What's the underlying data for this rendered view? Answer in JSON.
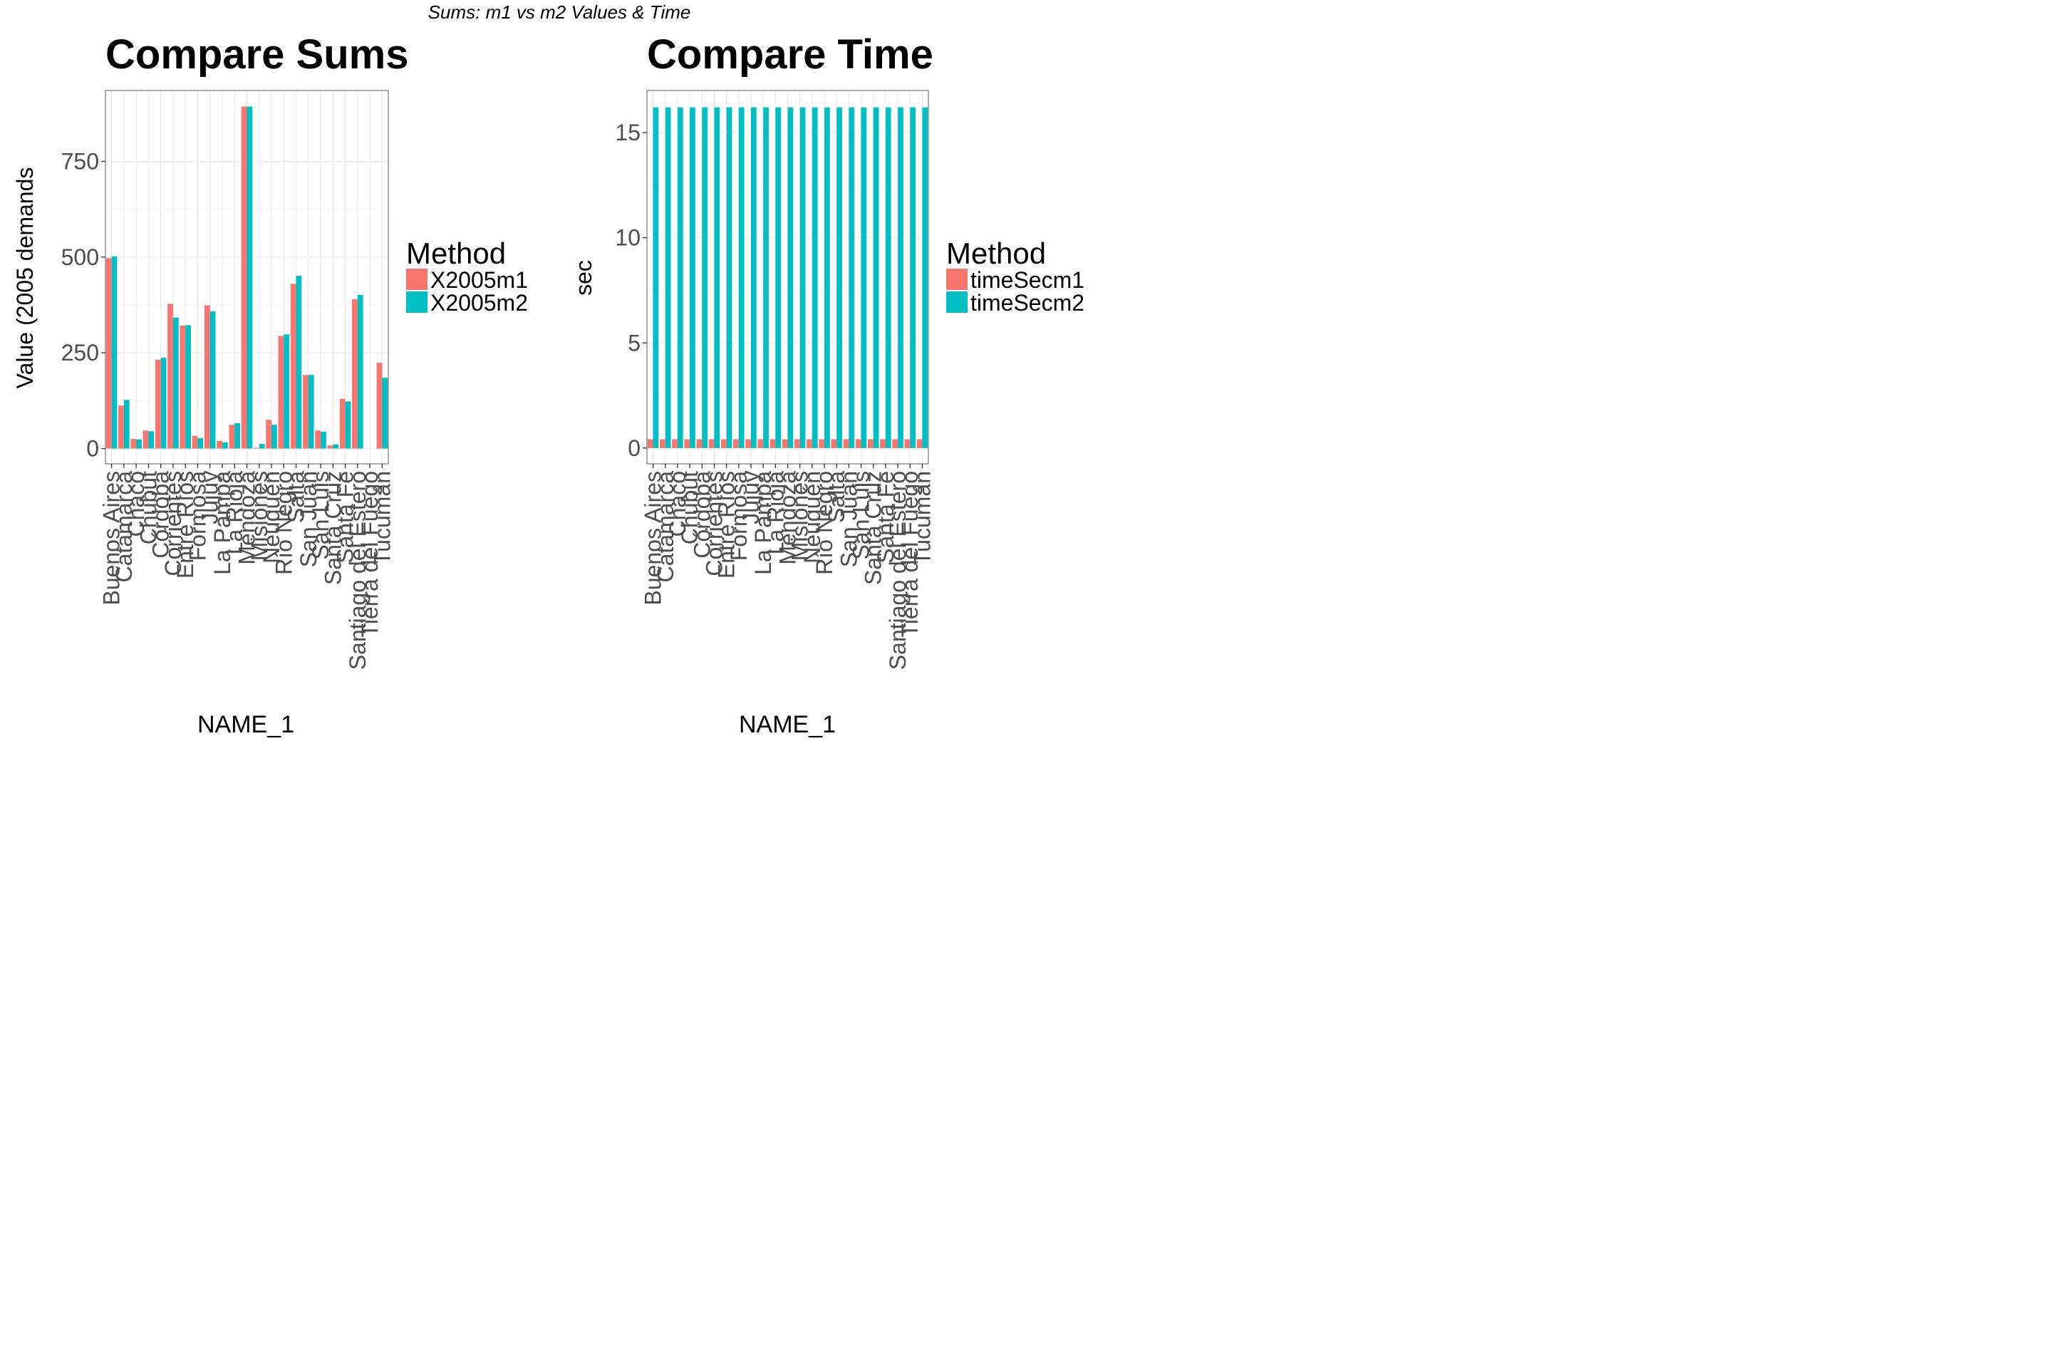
{
  "figure": {
    "suptitle": "Sums: m1 vs m2 Values & Time"
  },
  "colors": {
    "m1": "#F8766D",
    "m2": "#00BFC4",
    "grid": "#ebebeb",
    "panel_border": "#7f7f7f",
    "tick_text": "#4d4d4d"
  },
  "chart_data": [
    {
      "type": "bar",
      "title": "Compare Sums",
      "xlabel": "NAME_1",
      "ylabel": "Value (2005 demands",
      "ylim": [
        -40,
        935
      ],
      "yticks": [
        0,
        250,
        500,
        750
      ],
      "grid": true,
      "legend_position": "right",
      "legend_title": "Method",
      "categories": [
        "Buenos Aires",
        "Catamarca",
        "Chaco",
        "Chubut",
        "Córdoba",
        "Corrientes",
        "Entre Ríos",
        "Formosa",
        "Jujuy",
        "La Pampa",
        "La Rioja",
        "Mendoza",
        "Misiones",
        "Neuquén",
        "Río Negro",
        "Salta",
        "San Juan",
        "San Luis",
        "Santa Cruz",
        "Santa Fe",
        "Santiago del Estero",
        "Tierra del Fuego",
        "Tucumán"
      ],
      "series": [
        {
          "name": "X2005m1",
          "values": [
            497,
            112,
            25,
            47,
            232,
            378,
            321,
            33,
            374,
            20,
            62,
            893,
            2,
            75,
            294,
            430,
            192,
            47,
            8,
            130,
            390,
            0,
            224
          ]
        },
        {
          "name": "X2005m2",
          "values": [
            502,
            127,
            24,
            45,
            237,
            342,
            322,
            27,
            358,
            16,
            66,
            893,
            12,
            62,
            298,
            451,
            192,
            44,
            11,
            123,
            401,
            0,
            185
          ]
        }
      ]
    },
    {
      "type": "bar",
      "title": "Compare Time",
      "xlabel": "NAME_1",
      "ylabel": "sec",
      "ylim": [
        -0.75,
        17
      ],
      "yticks": [
        0,
        5,
        10,
        15
      ],
      "grid": true,
      "legend_position": "right",
      "legend_title": "Method",
      "categories": [
        "Buenos Aires",
        "Catamarca",
        "Chaco",
        "Chubut",
        "Córdoba",
        "Corrientes",
        "Entre Ríos",
        "Formosa",
        "Jujuy",
        "La Pampa",
        "La Rioja",
        "Mendoza",
        "Misiones",
        "Neuquén",
        "Río Negro",
        "Salta",
        "San Juan",
        "San Luis",
        "Santa Cruz",
        "Santa Fe",
        "Santiago del Estero",
        "Tierra del Fuego",
        "Tucumán"
      ],
      "series": [
        {
          "name": "timeSecm1",
          "values": [
            0.42,
            0.42,
            0.42,
            0.42,
            0.42,
            0.42,
            0.42,
            0.42,
            0.42,
            0.42,
            0.42,
            0.42,
            0.42,
            0.42,
            0.42,
            0.42,
            0.42,
            0.42,
            0.42,
            0.42,
            0.42,
            0.42,
            0.42
          ]
        },
        {
          "name": "timeSecm2",
          "values": [
            16.2,
            16.2,
            16.2,
            16.2,
            16.2,
            16.2,
            16.2,
            16.2,
            16.2,
            16.2,
            16.2,
            16.2,
            16.2,
            16.2,
            16.2,
            16.2,
            16.2,
            16.2,
            16.2,
            16.2,
            16.2,
            16.2,
            16.2
          ]
        }
      ]
    }
  ]
}
